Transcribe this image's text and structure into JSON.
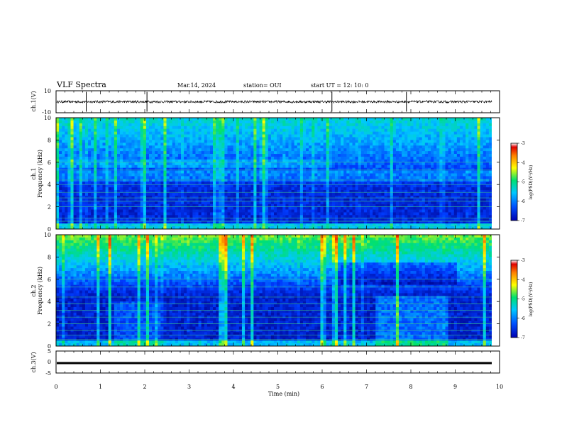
{
  "header": {
    "title": "VLF Spectra",
    "date": "Mar.14, 2024",
    "station": "station= OUI",
    "start": "start  UT  =   12: 10: 0"
  },
  "chart_data": [
    {
      "type": "line",
      "panel": "ch1-waveform",
      "ylabel": "ch.1(V)",
      "ylim": [
        -10,
        10
      ],
      "yticks": [
        "10",
        "-10"
      ],
      "xlim": [
        0,
        10
      ],
      "baseline": 0,
      "spikes_min": [
        0.68,
        2.05,
        6.22,
        7.9
      ]
    },
    {
      "type": "heatmap",
      "panel": "ch1-spectrogram",
      "ylabel": "ch.1\nFrequency (kHz)",
      "xlim": [
        0,
        10
      ],
      "ylim": [
        0,
        10
      ],
      "yticks": [
        "0",
        "2",
        "4",
        "6",
        "8",
        "10"
      ],
      "colorbar": {
        "label": "log(PSD)(V²/Hz)",
        "range": [
          -7,
          -3
        ],
        "ticks": [
          "-3",
          "-4",
          "-5",
          "-6",
          "-7"
        ],
        "colors": [
          "#0000b0",
          "#0050ff",
          "#00c8ff",
          "#00e070",
          "#ffff00",
          "#ff8000",
          "#e00000",
          "#ffffff"
        ]
      }
    },
    {
      "type": "heatmap",
      "panel": "ch2-spectrogram",
      "ylabel": "ch.2\nFrequency (kHz)",
      "xlim": [
        0,
        10
      ],
      "ylim": [
        0,
        10
      ],
      "yticks": [
        "0",
        "2",
        "4",
        "6",
        "8",
        "10"
      ],
      "colorbar": {
        "label": "log(PSD)(V²/Hz)",
        "range": [
          -7,
          -3
        ],
        "ticks": [
          "-3",
          "-4",
          "-5",
          "-6",
          "-7"
        ]
      }
    },
    {
      "type": "line",
      "panel": "ch3-waveform",
      "ylabel": "ch.3(V)",
      "ylim": [
        -5,
        5
      ],
      "yticks": [
        "5",
        "0",
        "-5"
      ],
      "xlim": [
        0,
        10
      ],
      "baseline": -1
    }
  ],
  "xaxis": {
    "label": "Time (min)",
    "ticks": [
      "0",
      "1",
      "2",
      "3",
      "4",
      "5",
      "6",
      "7",
      "8",
      "9",
      "10"
    ]
  }
}
